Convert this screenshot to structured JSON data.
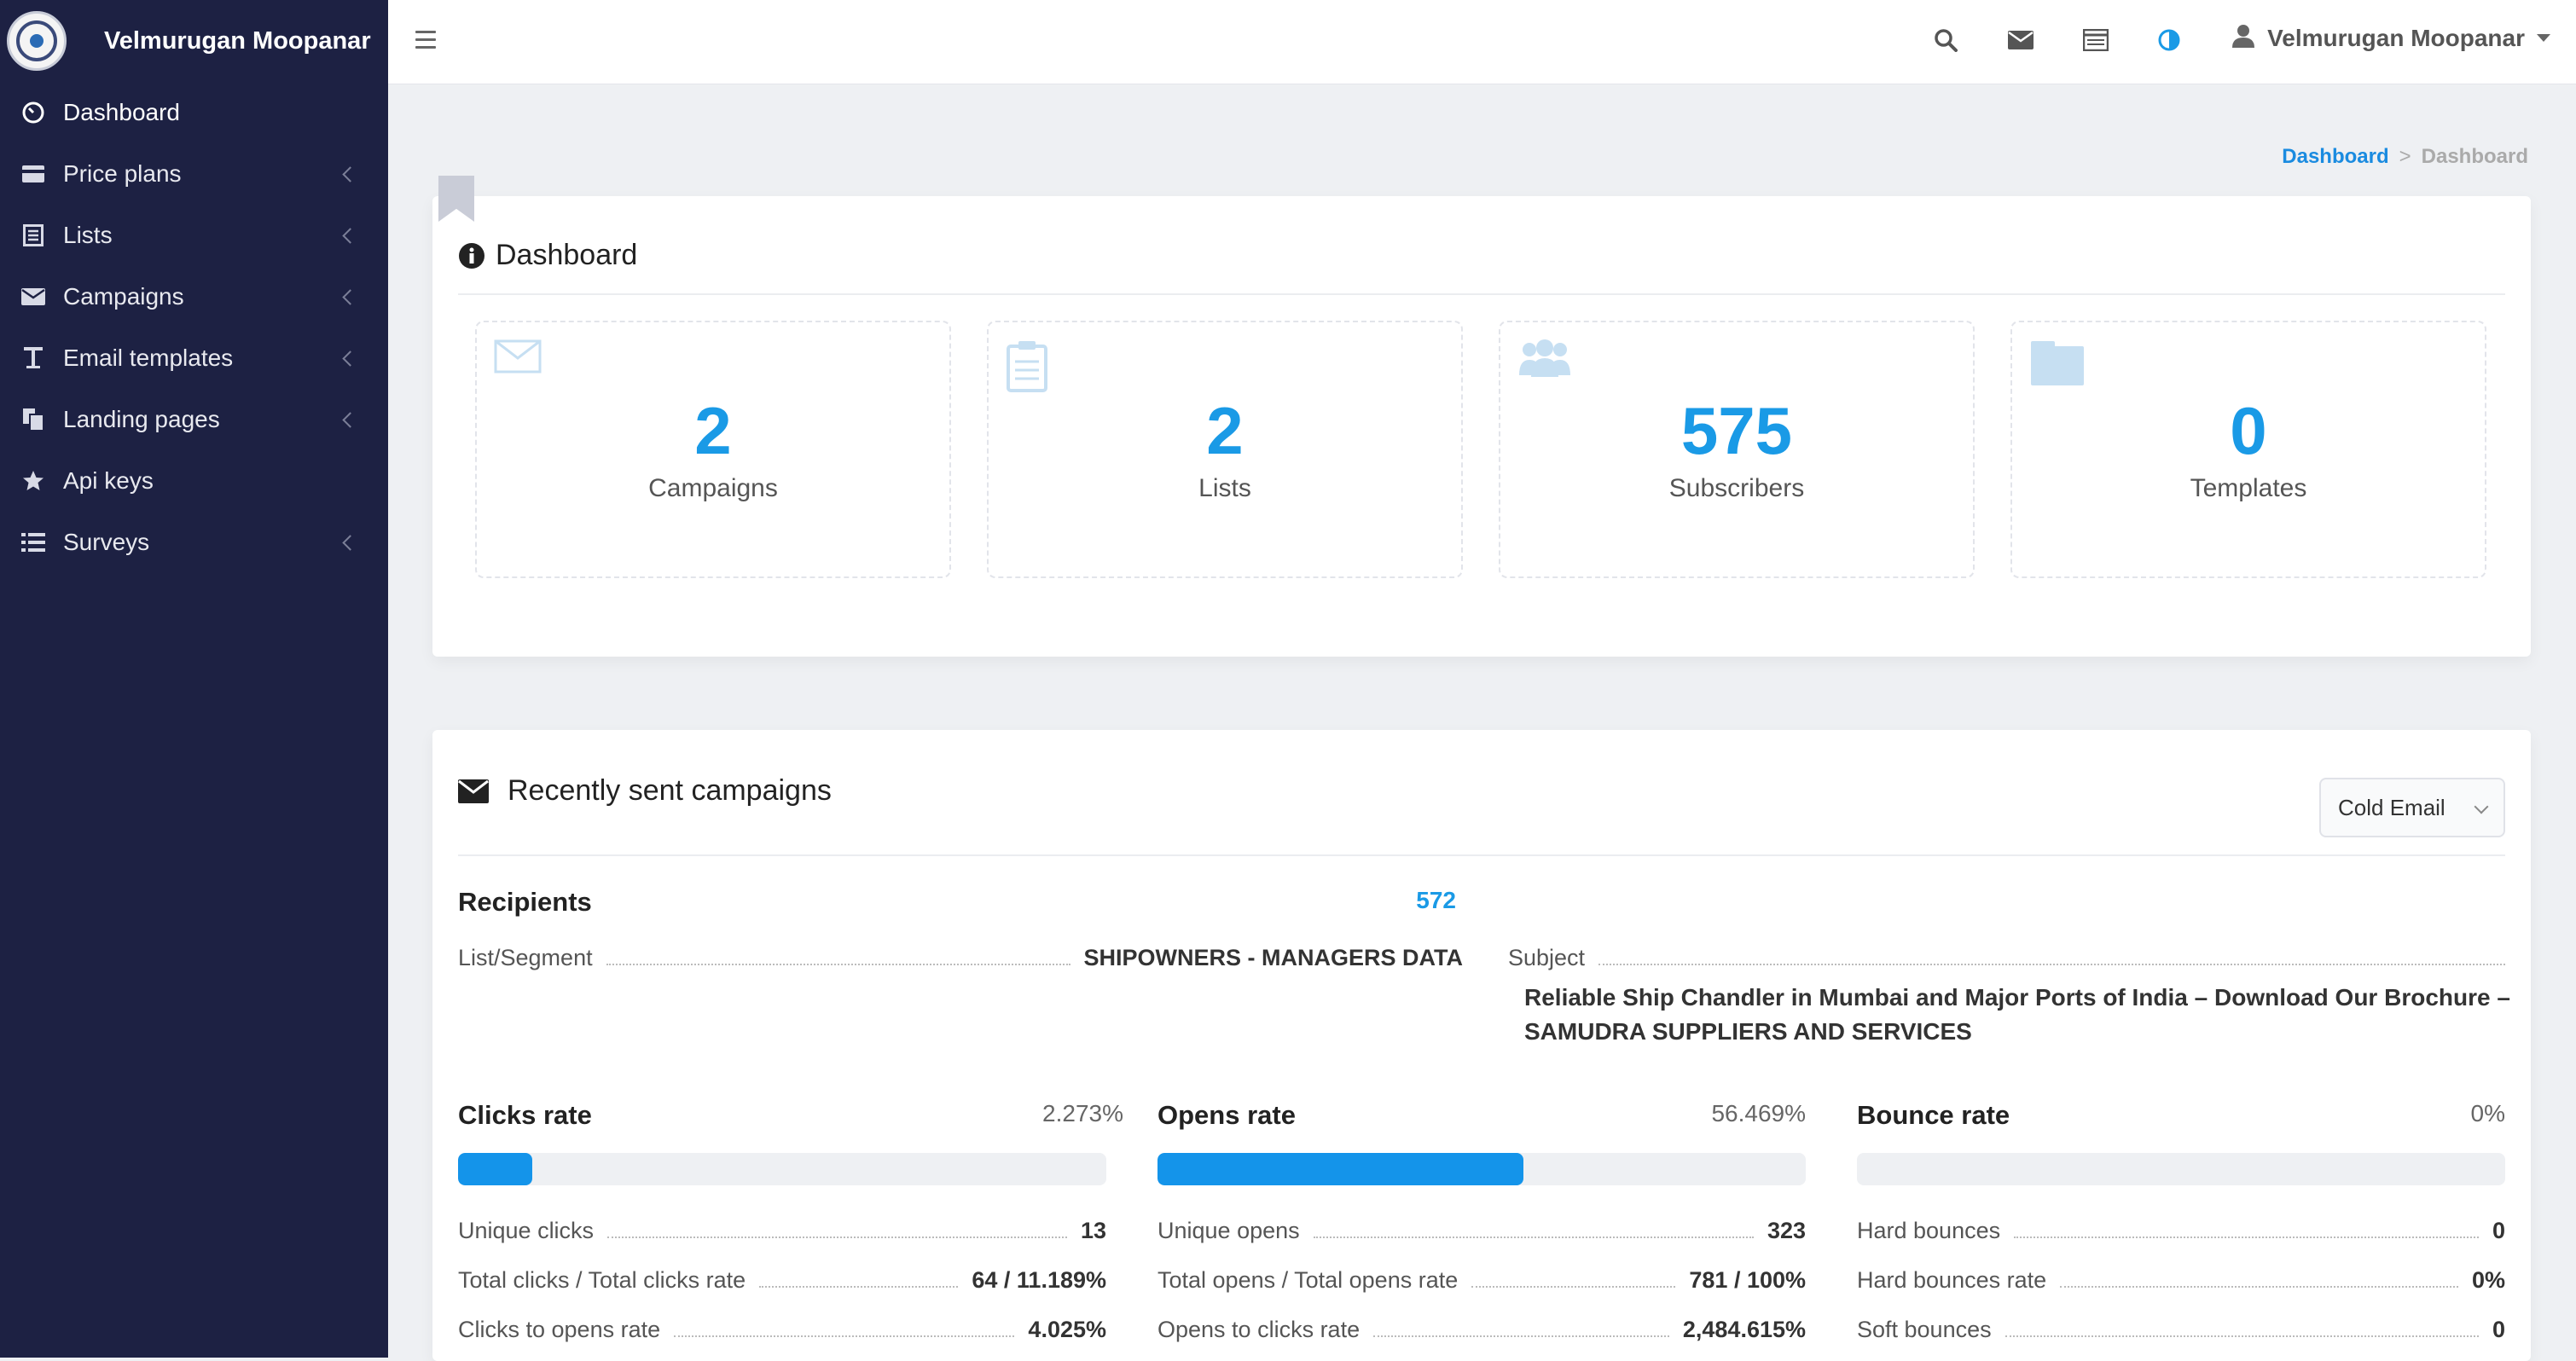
{
  "brand": {
    "name": "Velmurugan Moopanar"
  },
  "sidebar": {
    "items": [
      {
        "label": "Dashboard",
        "icon": "dashboard-gauge-icon",
        "active": true,
        "submenu": false
      },
      {
        "label": "Price plans",
        "icon": "credit-card-icon",
        "submenu": true
      },
      {
        "label": "Lists",
        "icon": "list-alt-icon",
        "submenu": true
      },
      {
        "label": "Campaigns",
        "icon": "envelope-icon",
        "submenu": true
      },
      {
        "label": "Email templates",
        "icon": "text-T-icon",
        "submenu": true
      },
      {
        "label": "Landing pages",
        "icon": "copy-pages-icon",
        "submenu": true
      },
      {
        "label": "Api keys",
        "icon": "star-icon",
        "submenu": false
      },
      {
        "label": "Surveys",
        "icon": "list-bullets-icon",
        "submenu": true
      }
    ]
  },
  "topbar": {
    "icons": [
      "search-icon",
      "envelope-icon",
      "tasks-icon",
      "contrast-icon"
    ],
    "user_name": "Velmurugan Moopanar"
  },
  "breadcrumb": {
    "link": "Dashboard",
    "separator": ">",
    "current": "Dashboard"
  },
  "dashboard": {
    "title": "Dashboard",
    "stats": [
      {
        "value": "2",
        "label": "Campaigns",
        "icon": "envelope-outline-icon"
      },
      {
        "value": "2",
        "label": "Lists",
        "icon": "clipboard-icon"
      },
      {
        "value": "575",
        "label": "Subscribers",
        "icon": "users-icon"
      },
      {
        "value": "0",
        "label": "Templates",
        "icon": "folder-icon"
      }
    ]
  },
  "campaigns": {
    "title": "Recently sent campaigns",
    "filter_selected": "Cold Email",
    "recipients_label": "Recipients",
    "recipients_value": "572",
    "list_segment_label": "List/Segment",
    "list_segment_value": "SHIPOWNERS - MANAGERS DATA",
    "subject_label": "Subject",
    "subject_value": "Reliable Ship Chandler in Mumbai and Major Ports of India – Download Our Brochure – SAMUDRA SUPPLIERS AND SERVICES",
    "rates": [
      {
        "title": "Clicks rate",
        "pct": "2.273%",
        "fill_percent": 2.273,
        "rows": [
          {
            "label": "Unique clicks",
            "value": "13"
          },
          {
            "label": "Total clicks / Total clicks rate",
            "value": "64 / 11.189%"
          },
          {
            "label": "Clicks to opens rate",
            "value": "4.025%"
          }
        ]
      },
      {
        "title": "Opens rate",
        "pct": "56.469%",
        "fill_percent": 56.469,
        "rows": [
          {
            "label": "Unique opens",
            "value": "323"
          },
          {
            "label": "Total opens / Total opens rate",
            "value": "781 / 100%"
          },
          {
            "label": "Opens to clicks rate",
            "value": "2,484.615%"
          }
        ]
      },
      {
        "title": "Bounce rate",
        "pct": "0%",
        "fill_percent": 0,
        "rows": [
          {
            "label": "Hard bounces",
            "value": "0"
          },
          {
            "label": "Hard bounces rate",
            "value": "0%"
          },
          {
            "label": "Soft bounces",
            "value": "0"
          }
        ]
      }
    ]
  },
  "colors": {
    "sidebar_bg": "#1d2143",
    "accent": "#1a9ae6",
    "bar_fill": "#1494ea"
  }
}
